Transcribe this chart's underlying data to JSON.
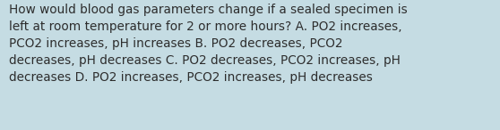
{
  "lines": [
    "How would blood gas parameters change if a sealed specimen is",
    "left at room temperature for 2 or more hours? A. PO2 increases,",
    "PCO2 increases, pH increases B. PO2 decreases, PCO2",
    "decreases, pH decreases C. PO2 decreases, PCO2 increases, pH",
    "decreases D. PO2 increases, PCO2 increases, pH decreases"
  ],
  "background_color": "#c5dce3",
  "text_color": "#2d2d2d",
  "font_size": 9.8,
  "fig_width": 5.58,
  "fig_height": 1.46,
  "dpi": 100
}
